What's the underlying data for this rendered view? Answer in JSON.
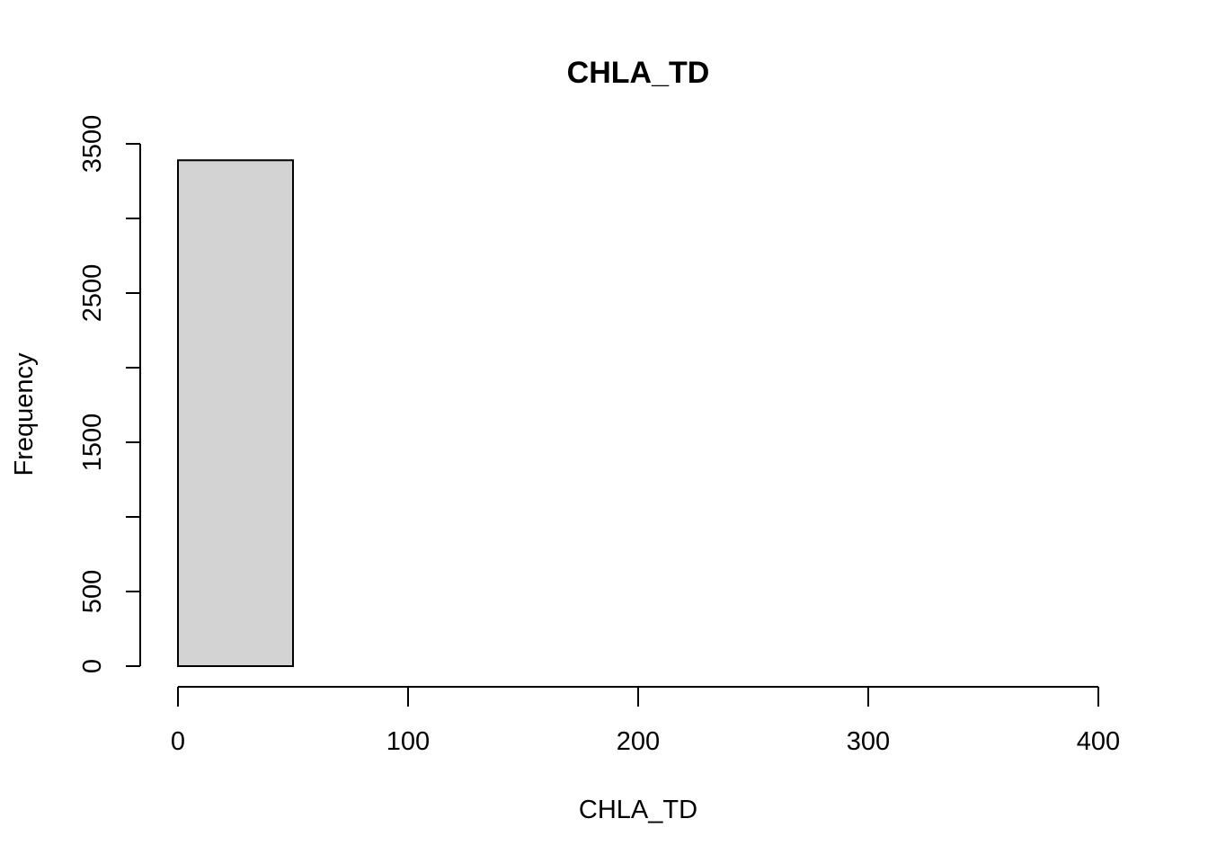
{
  "chart_data": {
    "type": "bar",
    "title": "CHLA_TD",
    "xlabel": "CHLA_TD",
    "ylabel": "Frequency",
    "bins": [
      {
        "start": 0,
        "end": 50,
        "count": 3390
      },
      {
        "start": 50,
        "end": 100,
        "count": 0
      },
      {
        "start": 100,
        "end": 150,
        "count": 0
      },
      {
        "start": 150,
        "end": 200,
        "count": 0
      },
      {
        "start": 200,
        "end": 250,
        "count": 0
      },
      {
        "start": 250,
        "end": 300,
        "count": 0
      },
      {
        "start": 300,
        "end": 350,
        "count": 0
      },
      {
        "start": 350,
        "end": 400,
        "count": 0
      }
    ],
    "xlim": [
      0,
      400
    ],
    "ylim": [
      0,
      3500
    ],
    "x_ticks": [
      "0",
      "100",
      "200",
      "300",
      "400"
    ],
    "y_ticks": [
      "0",
      "500",
      "1500",
      "2500",
      "3500"
    ],
    "y_tick_marks": [
      0,
      500,
      1000,
      1500,
      2000,
      2500,
      3000,
      3500
    ],
    "grid": false,
    "colors": {
      "bar_fill": "#d3d3d3",
      "bar_stroke": "#000000"
    }
  }
}
